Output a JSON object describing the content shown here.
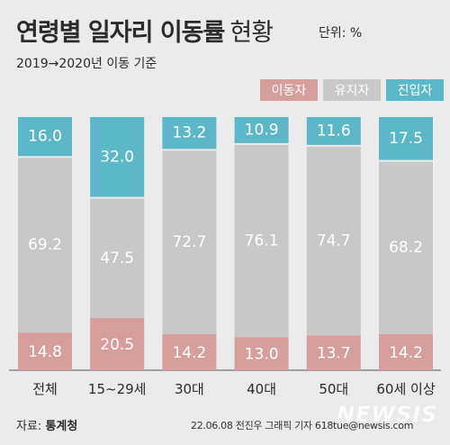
{
  "title": "연령별 일자리 이동률",
  "title_suffix": "현황",
  "unit": "단위: %",
  "basis": "2019→2020년 이동 기준",
  "source_label": "자료:",
  "source_name": "통계청",
  "credit": "22.06.08 전진우 그래픽 기자 618tue@newsis.com",
  "logo": "NEWSIS",
  "colors": {
    "moved": "#d69e9d",
    "stayed": "#c8c8c8",
    "entered": "#5cb8c9",
    "background": "#ebebeb"
  },
  "legend": [
    {
      "label": "이동자",
      "color": "#d69e9d"
    },
    {
      "label": "유지자",
      "color": "#c8c8c8"
    },
    {
      "label": "진입자",
      "color": "#5cb8c9"
    }
  ],
  "chart_data": {
    "type": "bar",
    "stacked": true,
    "categories": [
      "전체",
      "15~29세",
      "30대",
      "40대",
      "50대",
      "60세 이상"
    ],
    "series": [
      {
        "name": "이동자",
        "values": [
          14.8,
          20.5,
          14.2,
          13.0,
          13.7,
          14.2
        ],
        "labels": [
          "14.8",
          "20.5",
          "14.2",
          "13.0",
          "13.7",
          "14.2"
        ]
      },
      {
        "name": "유지자",
        "values": [
          69.2,
          47.5,
          72.7,
          76.1,
          74.7,
          68.2
        ],
        "labels": [
          "69.2",
          "47.5",
          "72.7",
          "76.1",
          "74.7",
          "68.2"
        ]
      },
      {
        "name": "진입자",
        "values": [
          16.0,
          32.0,
          13.2,
          10.9,
          11.6,
          17.5
        ],
        "labels": [
          "16.0",
          "32.0",
          "13.2",
          "10.9",
          "11.6",
          "17.5"
        ]
      }
    ],
    "ylim": [
      0,
      100
    ]
  }
}
